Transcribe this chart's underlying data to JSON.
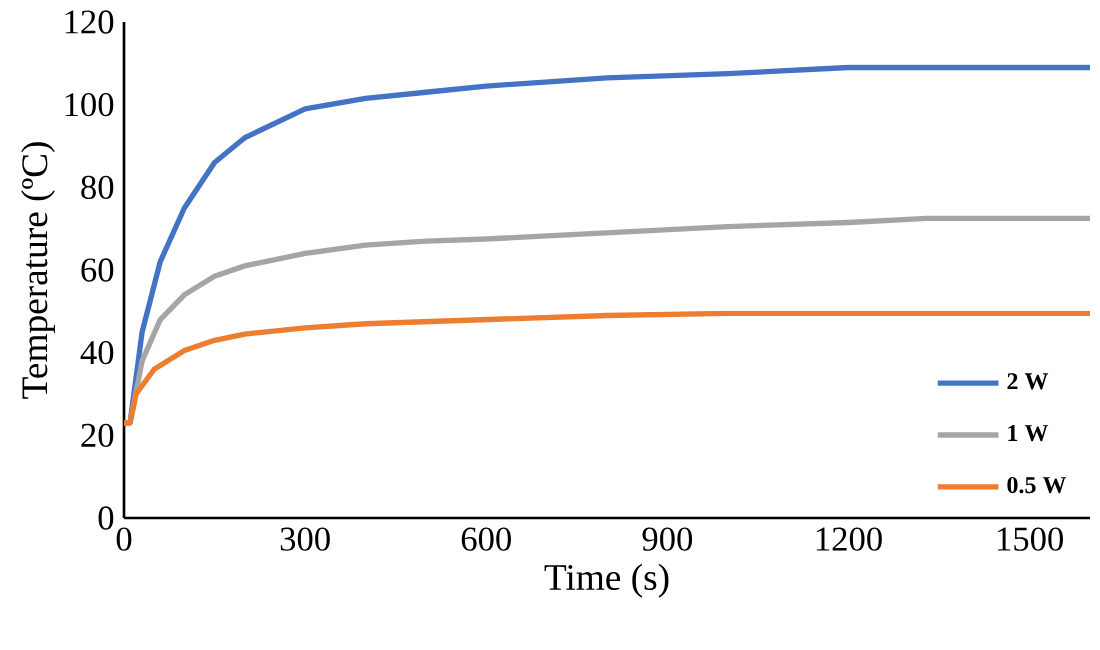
{
  "chart_data": {
    "type": "line",
    "xlabel": "Time (s)",
    "ylabel": "Temperature (ºC)",
    "xlim": [
      0,
      1600
    ],
    "ylim": [
      0,
      120
    ],
    "xticks": [
      0,
      300,
      600,
      900,
      1200,
      1500
    ],
    "yticks": [
      0,
      20,
      40,
      60,
      80,
      100,
      120
    ],
    "grid": false,
    "legend": "bottom right",
    "marker": "none",
    "line_style": "solid",
    "series": [
      {
        "name": "2 W",
        "color": "#4472c4",
        "x": [
          0,
          10,
          30,
          60,
          100,
          150,
          200,
          300,
          400,
          500,
          600,
          800,
          1000,
          1200,
          1400,
          1600
        ],
        "values": [
          23,
          23,
          45,
          62,
          75,
          86,
          92,
          99,
          101.5,
          103,
          104.5,
          106.5,
          107.5,
          109,
          109,
          109
        ]
      },
      {
        "name": "1 W",
        "color": "#a5a5a5",
        "x": [
          0,
          10,
          30,
          60,
          100,
          150,
          200,
          300,
          400,
          500,
          600,
          800,
          1000,
          1200,
          1330,
          1600
        ],
        "values": [
          23,
          23,
          38,
          48,
          54,
          58.5,
          61,
          64,
          66,
          67,
          67.5,
          69,
          70.5,
          71.5,
          72.5,
          72.5
        ]
      },
      {
        "name": "0.5 W",
        "color": "#ed7d31",
        "x": [
          0,
          10,
          20,
          50,
          100,
          150,
          200,
          300,
          400,
          600,
          800,
          1000,
          1200,
          1600
        ],
        "values": [
          23,
          23,
          30,
          36,
          40.5,
          43,
          44.5,
          46,
          47,
          48,
          49,
          49.5,
          49.5,
          49.5
        ]
      }
    ]
  }
}
